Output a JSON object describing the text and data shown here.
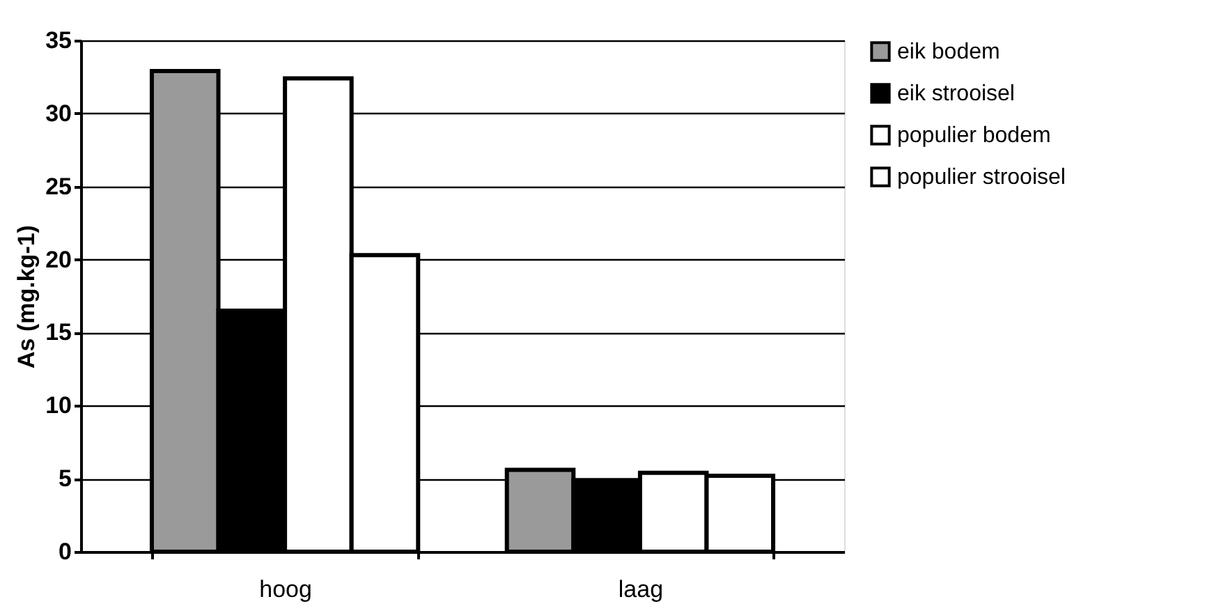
{
  "chart_data": {
    "type": "bar",
    "ylabel": "As (mg.kg-1)",
    "categories": [
      "hoog",
      "laag"
    ],
    "series": [
      {
        "name": "eik bodem",
        "color": "#9a9a9a",
        "values": [
          32.9,
          5.6
        ]
      },
      {
        "name": "eik strooisel",
        "color": "#000000",
        "values": [
          16.5,
          4.9
        ]
      },
      {
        "name": "populier bodem",
        "color": "#ffffff",
        "values": [
          32.4,
          5.4
        ]
      },
      {
        "name": "populier strooisel",
        "color": "#ffffff",
        "values": [
          20.3,
          5.2
        ]
      }
    ],
    "ylim": [
      0,
      35
    ],
    "yticks": [
      0,
      5,
      10,
      15,
      20,
      25,
      30,
      35
    ],
    "grid": "y",
    "legend": "right"
  }
}
